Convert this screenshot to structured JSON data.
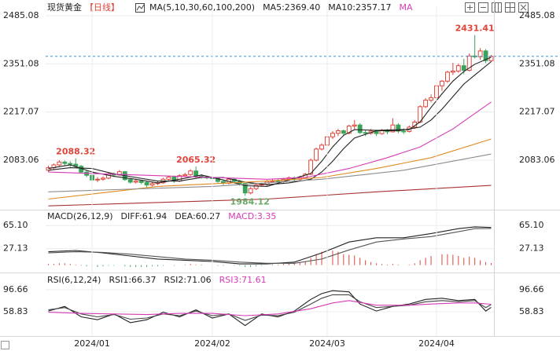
{
  "chart_data": [
    {
      "type": "candlestick",
      "title": "现货黄金",
      "period": "【日线】",
      "legend": [
        {
          "text": "MA(5,10,30,60,100,200)",
          "color": "#222222"
        },
        {
          "text": "MA5:2369.40",
          "color": "#222222"
        },
        {
          "text": "MA10:2357.17",
          "color": "#222222"
        },
        {
          "text": "MA",
          "color": "#d63bb5"
        }
      ],
      "xlim": [
        -0.5,
        81.5
      ],
      "ylim": [
        1947.6,
        2511.3
      ],
      "yticks": [
        2485.08,
        2351.08,
        2217.07,
        2083.06
      ],
      "grid": true,
      "up_color": "#e0443a",
      "down_color": "#3aa35a",
      "candles": [
        [
          2055,
          2068,
          2050,
          2062
        ],
        [
          2062,
          2074,
          2058,
          2070
        ],
        [
          2070,
          2083,
          2066,
          2078
        ],
        [
          2078,
          2082,
          2068,
          2074
        ],
        [
          2074,
          2080,
          2064,
          2072
        ],
        [
          2072,
          2088.32,
          2062,
          2066
        ],
        [
          2066,
          2070,
          2046,
          2050
        ],
        [
          2050,
          2056,
          2036,
          2041
        ],
        [
          2041,
          2044,
          2024,
          2028
        ],
        [
          2028,
          2036,
          2022,
          2030
        ],
        [
          2030,
          2038,
          2026,
          2033
        ],
        [
          2033,
          2050,
          2030,
          2045
        ],
        [
          2045,
          2049,
          2036,
          2042
        ],
        [
          2042,
          2056,
          2040,
          2051
        ],
        [
          2051,
          2053,
          2026,
          2029
        ],
        [
          2029,
          2032,
          2018,
          2022
        ],
        [
          2022,
          2030,
          2018,
          2025
        ],
        [
          2025,
          2028,
          2016,
          2021
        ],
        [
          2021,
          2024,
          2008,
          2014
        ],
        [
          2014,
          2022,
          2010,
          2018
        ],
        [
          2018,
          2026,
          2014,
          2020
        ],
        [
          2020,
          2034,
          2018,
          2030
        ],
        [
          2030,
          2040,
          2026,
          2036
        ],
        [
          2036,
          2040,
          2020,
          2025
        ],
        [
          2025,
          2044,
          2022,
          2040
        ],
        [
          2040,
          2048,
          2036,
          2043
        ],
        [
          2043,
          2058,
          2040,
          2053
        ],
        [
          2053,
          2065.32,
          2034,
          2039
        ],
        [
          2039,
          2044,
          2032,
          2037
        ],
        [
          2037,
          2040,
          2030,
          2034
        ],
        [
          2034,
          2038,
          2028,
          2033
        ],
        [
          2033,
          2036,
          2020,
          2024
        ],
        [
          2024,
          2026,
          2014,
          2019
        ],
        [
          2019,
          2034,
          2016,
          2030
        ],
        [
          2030,
          2033,
          2020,
          2024
        ],
        [
          2024,
          2028,
          2012,
          2018
        ],
        [
          2018,
          2020,
          1984.12,
          1992
        ],
        [
          1992,
          2008,
          1988,
          2004
        ],
        [
          2004,
          2018,
          2000,
          2014
        ],
        [
          2014,
          2020,
          2010,
          2016
        ],
        [
          2016,
          2028,
          2012,
          2024
        ],
        [
          2024,
          2030,
          2020,
          2025
        ],
        [
          2025,
          2030,
          2018,
          2024
        ],
        [
          2024,
          2034,
          2020,
          2030
        ],
        [
          2030,
          2038,
          2026,
          2034
        ],
        [
          2034,
          2038,
          2026,
          2030
        ],
        [
          2030,
          2040,
          2026,
          2035
        ],
        [
          2035,
          2048,
          2032,
          2044
        ],
        [
          2044,
          2088,
          2042,
          2083
        ],
        [
          2083,
          2118,
          2080,
          2114
        ],
        [
          2114,
          2130,
          2110,
          2125
        ],
        [
          2125,
          2152,
          2122,
          2148
        ],
        [
          2148,
          2164,
          2142,
          2158
        ],
        [
          2158,
          2170,
          2150,
          2165
        ],
        [
          2165,
          2168,
          2150,
          2158
        ],
        [
          2158,
          2182,
          2155,
          2178
        ],
        [
          2178,
          2195,
          2170,
          2181
        ],
        [
          2181,
          2186,
          2156,
          2160
        ],
        [
          2160,
          2168,
          2150,
          2158
        ],
        [
          2158,
          2170,
          2154,
          2164
        ],
        [
          2164,
          2168,
          2150,
          2157
        ],
        [
          2157,
          2170,
          2154,
          2165
        ],
        [
          2165,
          2170,
          2155,
          2162
        ],
        [
          2162,
          2200,
          2160,
          2181
        ],
        [
          2181,
          2186,
          2158,
          2164
        ],
        [
          2164,
          2172,
          2156,
          2163
        ],
        [
          2163,
          2180,
          2160,
          2175
        ],
        [
          2175,
          2195,
          2170,
          2189
        ],
        [
          2189,
          2236,
          2186,
          2232
        ],
        [
          2232,
          2256,
          2228,
          2250
        ],
        [
          2250,
          2266,
          2244,
          2257
        ],
        [
          2257,
          2296,
          2252,
          2290
        ],
        [
          2290,
          2306,
          2276,
          2303
        ],
        [
          2303,
          2332,
          2298,
          2328
        ],
        [
          2328,
          2354,
          2320,
          2331
        ],
        [
          2331,
          2352,
          2326,
          2346
        ],
        [
          2346,
          2365,
          2322,
          2333
        ],
        [
          2333,
          2380,
          2330,
          2373
        ],
        [
          2373,
          2431.41,
          2366,
          2371
        ],
        [
          2371,
          2395,
          2362,
          2387
        ],
        [
          2387,
          2392,
          2353,
          2360
        ],
        [
          2360,
          2376,
          2356,
          2372
        ]
      ],
      "series": [
        {
          "name": "MA5",
          "color": "#222222",
          "x": [
            0,
            4,
            8,
            12,
            16,
            20,
            24,
            28,
            32,
            36,
            40,
            44,
            48,
            50,
            52,
            54,
            56,
            60,
            64,
            66,
            68,
            70,
            72,
            74,
            76,
            78,
            81
          ],
          "values": [
            2060,
            2070,
            2050,
            2038,
            2030,
            2020,
            2030,
            2042,
            2028,
            2012,
            2010,
            2028,
            2046,
            2080,
            2120,
            2152,
            2168,
            2166,
            2168,
            2168,
            2190,
            2230,
            2268,
            2303,
            2330,
            2350,
            2369.4
          ]
        },
        {
          "name": "MA10",
          "color": "#222222",
          "x": [
            0,
            4,
            8,
            12,
            16,
            20,
            24,
            28,
            32,
            36,
            40,
            44,
            48,
            50,
            52,
            54,
            56,
            60,
            64,
            68,
            70,
            72,
            74,
            76,
            78,
            81
          ],
          "values": [
            2055,
            2062,
            2060,
            2045,
            2035,
            2025,
            2025,
            2035,
            2035,
            2022,
            2015,
            2020,
            2030,
            2050,
            2080,
            2115,
            2145,
            2165,
            2165,
            2175,
            2195,
            2225,
            2260,
            2295,
            2320,
            2357.17
          ]
        },
        {
          "name": "MA30",
          "color": "#d63bb5",
          "x": [
            0,
            20,
            40,
            47,
            55,
            62,
            68,
            74,
            81
          ],
          "values": [
            2050,
            2040,
            2030,
            2035,
            2060,
            2090,
            2120,
            2170,
            2245
          ]
        },
        {
          "name": "MA60",
          "color": "#e08a1e",
          "x": [
            0,
            20,
            40,
            50,
            60,
            70,
            81
          ],
          "values": [
            1975,
            2010,
            2025,
            2035,
            2060,
            2090,
            2142
          ]
        },
        {
          "name": "MA100",
          "color": "#8c8c8c",
          "x": [
            0,
            30,
            50,
            65,
            81
          ],
          "values": [
            1995,
            2010,
            2030,
            2055,
            2100
          ]
        },
        {
          "name": "MA200",
          "color": "#a83232",
          "x": [
            0,
            40,
            60,
            81
          ],
          "values": [
            1956,
            1975,
            1995,
            2013
          ]
        }
      ]
    },
    {
      "type": "macd",
      "legend": [
        {
          "text": "MACD(26,12,9)",
          "color": "#222222"
        },
        {
          "text": "DIFF:61.94",
          "color": "#222222"
        },
        {
          "text": "DEA:60.27",
          "color": "#222222"
        },
        {
          "text": "MACD:3.35",
          "color": "#d63bb5"
        }
      ],
      "xlim": [
        -0.5,
        81.5
      ],
      "ylim": [
        -10.83,
        89.97
      ],
      "yticks": [
        {
          "value": 65.1,
          "label": "65.10"
        },
        27.13
      ],
      "grid": true,
      "up_color": "#e0443a",
      "down_color": "#3aa35a",
      "values": [
        2,
        2,
        3,
        3,
        2,
        1,
        -1,
        -2,
        -3,
        -3,
        -2,
        -1,
        -1,
        0,
        -2,
        -3,
        -3,
        -3,
        -3,
        -2,
        -2,
        -1,
        0,
        -1,
        0,
        1,
        2,
        1,
        1,
        0,
        0,
        -1,
        -1,
        0,
        -1,
        -1,
        -3,
        -3,
        -2,
        -1,
        0,
        1,
        1,
        2,
        3,
        3,
        4,
        6,
        12,
        18,
        22,
        24,
        24,
        22,
        18,
        17,
        16,
        12,
        8,
        5,
        3,
        2,
        1,
        2,
        1,
        0,
        1,
        3,
        8,
        12,
        15,
        16,
        18,
        18,
        17,
        15,
        12,
        14,
        12,
        8,
        5,
        3.35
      ],
      "series": [
        {
          "name": "DIFF",
          "color": "#222222",
          "x": [
            0,
            5,
            10,
            15,
            20,
            25,
            30,
            35,
            40,
            45,
            50,
            55,
            60,
            65,
            70,
            75,
            78,
            81
          ],
          "values": [
            22,
            24,
            20,
            15,
            10,
            8,
            6,
            2,
            2,
            5,
            20,
            38,
            45,
            45,
            52,
            60,
            63,
            61.94
          ]
        },
        {
          "name": "DEA",
          "color": "#555555",
          "x": [
            0,
            5,
            10,
            15,
            20,
            25,
            30,
            35,
            40,
            45,
            50,
            55,
            60,
            65,
            70,
            75,
            78,
            81
          ],
          "values": [
            20,
            22,
            21,
            18,
            14,
            10,
            8,
            5,
            3,
            3,
            10,
            25,
            38,
            43,
            47,
            55,
            60,
            60.27
          ]
        }
      ]
    },
    {
      "type": "line",
      "legend": [
        {
          "text": "RSI(6,12,24)",
          "color": "#222222"
        },
        {
          "text": "RSI1:66.37",
          "color": "#222222"
        },
        {
          "text": "RSI2:71.06",
          "color": "#222222"
        },
        {
          "text": "RSI3:71.61",
          "color": "#d63bb5"
        }
      ],
      "xlim": [
        -0.5,
        81.5
      ],
      "ylim": [
        16.95,
        122.3
      ],
      "yticks": [
        96.66,
        58.83
      ],
      "grid": true,
      "xticks": [
        {
          "value": 8,
          "label": "2024/01"
        },
        {
          "value": 30,
          "label": "2024/02"
        },
        {
          "value": 51,
          "label": "2024/03"
        },
        {
          "value": 71,
          "label": "2024/04"
        }
      ],
      "series": [
        {
          "name": "RSI1",
          "color": "#222222",
          "x": [
            0,
            3,
            6,
            9,
            12,
            15,
            18,
            21,
            24,
            27,
            30,
            33,
            36,
            39,
            42,
            45,
            48,
            50,
            52,
            55,
            57,
            60,
            63,
            66,
            69,
            72,
            75,
            78,
            80,
            81
          ],
          "values": [
            60,
            68,
            50,
            45,
            55,
            40,
            45,
            58,
            50,
            62,
            48,
            55,
            35,
            55,
            50,
            60,
            80,
            90,
            95,
            93,
            72,
            60,
            68,
            72,
            80,
            82,
            78,
            80,
            60,
            66.37
          ]
        },
        {
          "name": "RSI2",
          "color": "#444444",
          "x": [
            0,
            3,
            6,
            9,
            12,
            15,
            18,
            21,
            24,
            27,
            30,
            33,
            36,
            39,
            42,
            45,
            48,
            50,
            52,
            55,
            57,
            60,
            63,
            66,
            69,
            72,
            75,
            78,
            80,
            81
          ],
          "values": [
            62,
            66,
            55,
            50,
            54,
            46,
            48,
            55,
            52,
            60,
            52,
            55,
            44,
            53,
            52,
            58,
            72,
            82,
            88,
            88,
            76,
            66,
            68,
            70,
            76,
            78,
            76,
            78,
            66,
            71.06
          ]
        },
        {
          "name": "RSI3",
          "color": "#d63bb5",
          "x": [
            0,
            6,
            12,
            18,
            24,
            30,
            36,
            42,
            48,
            52,
            55,
            60,
            66,
            70,
            75,
            78,
            81
          ],
          "values": [
            58,
            56,
            55,
            54,
            56,
            56,
            52,
            55,
            64,
            74,
            78,
            70,
            70,
            72,
            74,
            74,
            71.61
          ]
        }
      ]
    }
  ]
}
